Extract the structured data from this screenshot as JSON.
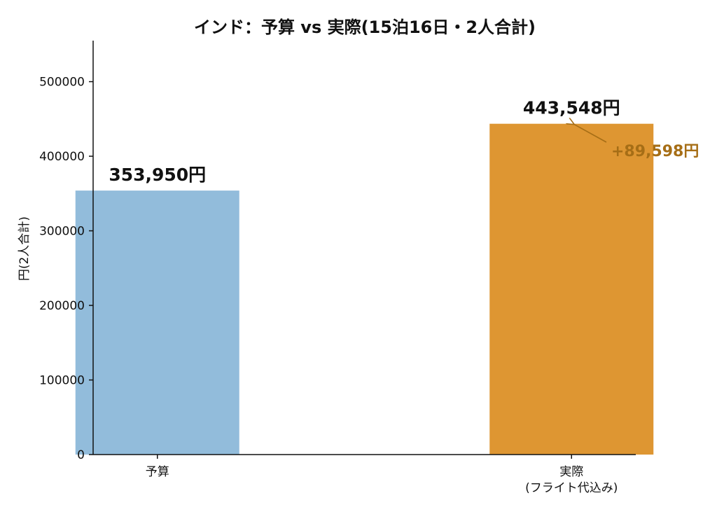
{
  "chart_data": {
    "type": "bar",
    "title": "インド：予算 vs 実際(15泊16日・2人合計)",
    "ylabel": "円(2人合計)",
    "xlabel": "",
    "ylim": [
      0,
      555000
    ],
    "yticks": [
      "0",
      "100000",
      "200000",
      "300000",
      "400000",
      "500000"
    ],
    "ytick_values": [
      0,
      100000,
      200000,
      300000,
      400000,
      500000
    ],
    "grid": false,
    "categories": [
      [
        "予算"
      ],
      [
        "実際",
        "(フライト代込み)"
      ]
    ],
    "values": [
      353950,
      443548
    ],
    "bar_labels": [
      "353,950円",
      "443,548円"
    ],
    "colors": [
      "#92bcdb",
      "#de9632"
    ],
    "annotation": {
      "text": "+89,598円",
      "color": "#a66e16",
      "arrow_color": "#a66e16"
    }
  }
}
